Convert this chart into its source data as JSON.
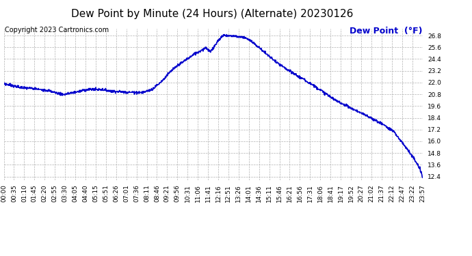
{
  "title": "Dew Point by Minute (24 Hours) (Alternate) 20230126",
  "copyright": "Copyright 2023 Cartronics.com",
  "legend_label": "Dew Point  (°F)",
  "line_color": "#0000cc",
  "background_color": "#ffffff",
  "grid_color": "#b0b0b0",
  "title_color": "#000000",
  "copyright_color": "#000000",
  "legend_color": "#0000cc",
  "ylim": [
    12.0,
    27.5
  ],
  "yticks": [
    12.4,
    13.6,
    14.8,
    16.0,
    17.2,
    18.4,
    19.6,
    20.8,
    22.0,
    23.2,
    24.4,
    25.6,
    26.8
  ],
  "x_tick_labels": [
    "00:00",
    "00:35",
    "01:10",
    "01:45",
    "02:20",
    "02:55",
    "03:30",
    "04:05",
    "04:40",
    "05:15",
    "05:51",
    "06:26",
    "07:01",
    "07:36",
    "08:11",
    "08:46",
    "09:21",
    "09:56",
    "10:31",
    "11:06",
    "11:41",
    "12:16",
    "12:51",
    "13:26",
    "14:01",
    "14:36",
    "15:11",
    "15:46",
    "16:21",
    "16:56",
    "17:31",
    "18:06",
    "18:41",
    "19:17",
    "19:52",
    "20:27",
    "21:02",
    "21:37",
    "22:12",
    "22:47",
    "23:22",
    "23:57"
  ],
  "title_fontsize": 11,
  "copyright_fontsize": 7,
  "legend_fontsize": 9,
  "tick_fontsize": 6.5,
  "line_width": 1.2,
  "key_times": [
    0,
    55,
    95,
    150,
    200,
    210,
    290,
    330,
    380,
    430,
    480,
    510,
    530,
    545,
    560,
    580,
    600,
    620,
    640,
    660,
    680,
    695,
    710,
    720,
    730,
    740,
    755,
    775,
    800,
    830,
    860,
    900,
    940,
    980,
    1020,
    1060,
    1100,
    1140,
    1180,
    1220,
    1260,
    1300,
    1340,
    1380,
    1410,
    1430,
    1439
  ],
  "key_values": [
    21.9,
    21.5,
    21.4,
    21.2,
    20.8,
    20.8,
    21.3,
    21.3,
    21.1,
    21.0,
    21.0,
    21.3,
    21.8,
    22.2,
    22.7,
    23.3,
    23.8,
    24.2,
    24.6,
    25.0,
    25.3,
    25.6,
    25.1,
    25.5,
    26.0,
    26.4,
    26.8,
    26.8,
    26.7,
    26.6,
    26.0,
    25.0,
    24.0,
    23.2,
    22.5,
    21.8,
    21.0,
    20.2,
    19.6,
    19.0,
    18.4,
    17.8,
    17.0,
    15.5,
    14.2,
    13.2,
    12.4
  ]
}
